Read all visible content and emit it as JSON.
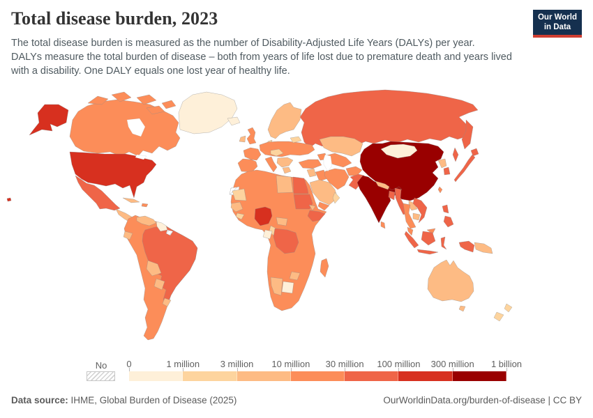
{
  "header": {
    "title": "Total disease burden, 2023",
    "subtitle_lines": [
      "The total disease burden is measured as the number of Disability-Adjusted Life Years (DALYs) per year.",
      "DALYs measure the total burden of disease – both from years of life lost due to premature death and years lived",
      "with a disability. One DALY equals one lost year of healthy life."
    ]
  },
  "logo": {
    "line1": "Our World",
    "line2": "in Data",
    "bg_color": "#15304f",
    "accent_color": "#cf3e31"
  },
  "legend": {
    "no_data_label": "No data",
    "tick_labels": [
      "0",
      "1 million",
      "3 million",
      "10 million",
      "30 million",
      "100 million",
      "300 million",
      "1 billion"
    ]
  },
  "footer": {
    "source_label": "Data source:",
    "source_text": " IHME, Global Burden of Disease (2025)",
    "credit": "OurWorldinData.org/burden-of-disease | CC BY"
  },
  "chart_data": {
    "type": "choropleth",
    "title": "Total disease burden, 2023",
    "unit": "Disability-Adjusted Life Years (DALYs) per year",
    "bins": [
      "0",
      "1 million",
      "3 million",
      "10 million",
      "30 million",
      "100 million",
      "300 million",
      "1 billion"
    ],
    "bin_colors": [
      "#fef0d9",
      "#fdd49e",
      "#fdbb84",
      "#fc8d59",
      "#ef6548",
      "#d7301f",
      "#990000"
    ],
    "no_data_fill": "hatched",
    "regions": {
      "united-states": 5,
      "canada": 3,
      "greenland": 0,
      "iceland": 0,
      "mexico": 4,
      "central-america": 2,
      "panama-costa-rica": 1,
      "cuba": 2,
      "hispaniola": 3,
      "south-america-orange-countries": 3,
      "brazil": 4,
      "venezuela": 2,
      "guyana-suriname": 0,
      "french-guiana": null,
      "ecuador": 2,
      "bolivia": 2,
      "paraguay": 2,
      "uruguay": 2,
      "united-kingdom": 3,
      "ireland": 2,
      "scandinavia": 2,
      "denmark": 1,
      "iberia": 3,
      "france": 3,
      "central-europe": 3,
      "italy": 3,
      "balkans": 2,
      "greece": 2,
      "alpine-states": 1,
      "baltics": 1,
      "russia": 4,
      "turkey": 3,
      "caucasus": 3,
      "levant": 2,
      "iraq": 3,
      "saudi-arabia": 2,
      "yemen": 3,
      "oman": 1,
      "iran": 3,
      "afghanistan": 3,
      "pakistan": 4,
      "kazakhstan": 2,
      "central-asia": 3,
      "china": 6,
      "mongolia": 0,
      "taiwan": 3,
      "north-korea": 2,
      "south-korea": 4,
      "japan": 4,
      "india": 6,
      "nepal": 2,
      "bangladesh": 4,
      "sri-lanka": 3,
      "myanmar": 4,
      "thailand": 3,
      "laos": 2,
      "cambodia": 2,
      "vietnam": 4,
      "malaysia": 3,
      "indonesia": 4,
      "philippines": 4,
      "papua-new-guinea": 2,
      "australia": 2,
      "new-zealand": 1,
      "africa-orange-countries": 3,
      "western-sahara": null,
      "mauritania": 1,
      "senegal-guinea": 2,
      "sierra-leone-liberia": 1,
      "libya": 2,
      "egypt": 4,
      "sudan": 4,
      "eritrea": 2,
      "ethiopia": 4,
      "nigeria": 5,
      "central-african-republic": 2,
      "dr-congo": 4,
      "gabon": 0,
      "congo": 1,
      "zimbabwe": 2,
      "botswana": 0,
      "namibia": 2,
      "madagascar": 3
    }
  }
}
